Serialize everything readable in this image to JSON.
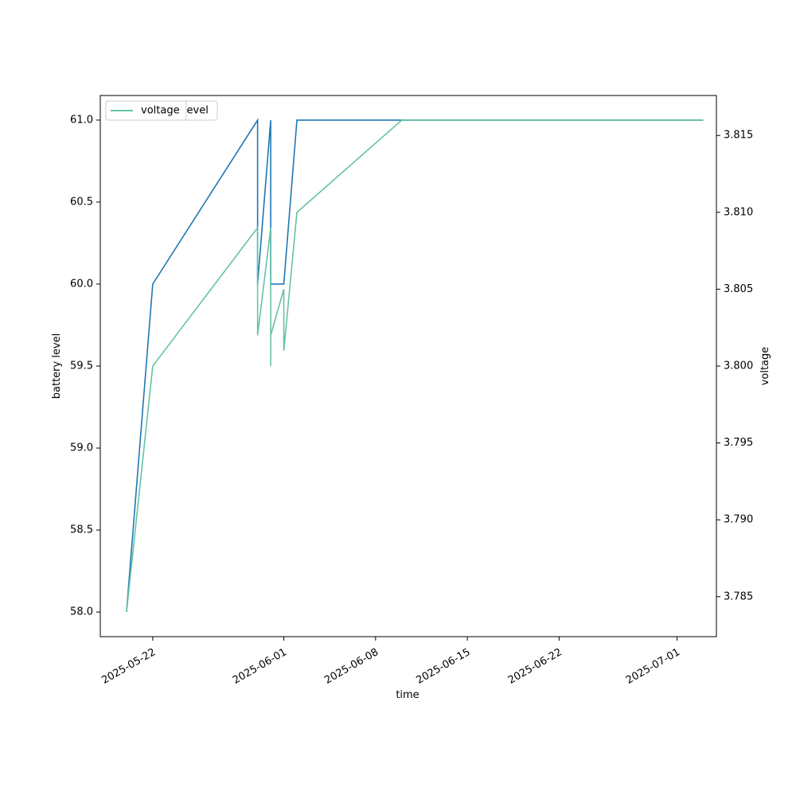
{
  "chart_data": {
    "type": "line",
    "xlabel": "time",
    "ylabel": "battery level",
    "y2label": "voltage",
    "xlim": [
      "2025-05-18",
      "2025-07-04"
    ],
    "xticks": [
      "2025-05-22",
      "2025-06-01",
      "2025-06-08",
      "2025-06-15",
      "2025-06-22",
      "2025-07-01"
    ],
    "ylim": [
      57.85,
      61.15
    ],
    "yticks": [
      {
        "value": 58,
        "label": "58.0"
      },
      58.5,
      {
        "value": 59,
        "label": "59.0"
      },
      59.5,
      {
        "value": 60,
        "label": "60.0"
      },
      60.5,
      {
        "value": 61,
        "label": "61.0"
      }
    ],
    "y2lim": [
      3.7824,
      3.8176
    ],
    "y2ticks": [
      3.785,
      {
        "value": 3.79,
        "label": "3.790"
      },
      3.795,
      {
        "value": 3.8,
        "label": "3.800"
      },
      3.805,
      {
        "value": 3.81,
        "label": "3.810"
      },
      3.815
    ],
    "grid": false,
    "legend": "upper left",
    "series": [
      {
        "name": "battery_level",
        "color": "#1f77b4",
        "x": [
          "2025-05-20",
          "2025-05-22",
          "2025-05-30",
          "2025-05-30",
          "2025-05-30",
          "2025-05-31",
          "2025-05-31",
          "2025-05-31",
          "2025-06-01",
          "2025-06-02",
          "2025-06-10",
          "2025-07-03"
        ],
        "values": [
          58,
          60,
          61,
          60,
          60,
          61,
          61,
          60,
          60,
          61,
          61,
          61
        ]
      },
      {
        "name": "voltage",
        "color": "#66c2a5",
        "axis": "y2",
        "x": [
          "2025-05-20",
          "2025-05-22",
          "2025-05-30",
          "2025-05-30",
          "2025-05-31",
          "2025-05-31",
          "2025-05-31",
          "2025-05-31",
          "2025-06-01",
          "2025-06-01",
          "2025-06-02",
          "2025-06-10",
          "2025-07-03"
        ],
        "values": [
          3.784,
          3.8,
          3.809,
          3.802,
          3.809,
          3.809,
          3.8,
          3.802,
          3.805,
          3.801,
          3.81,
          3.816,
          3.816
        ]
      }
    ]
  }
}
